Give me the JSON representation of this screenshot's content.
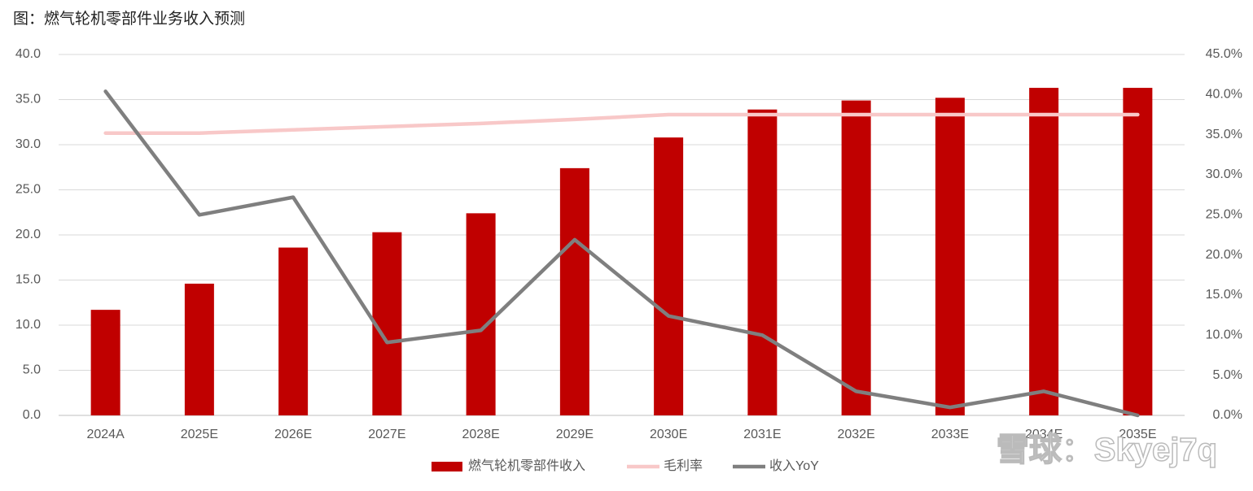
{
  "chart_data": {
    "type": "bar",
    "title": "图：燃气轮机零部件业务收入预测",
    "watermark": "雪球：Skyej7q",
    "categories": [
      "2024A",
      "2025E",
      "2026E",
      "2027E",
      "2028E",
      "2029E",
      "2030E",
      "2031E",
      "2032E",
      "2033E",
      "2034E",
      "2035E"
    ],
    "series": [
      {
        "name": "燃气轮机零部件收入",
        "type": "bar",
        "color": "#c00000",
        "values": [
          11.7,
          14.6,
          18.6,
          20.3,
          22.4,
          27.4,
          30.8,
          33.9,
          34.9,
          35.2,
          36.3,
          36.3
        ]
      },
      {
        "name": "毛利率",
        "type": "line",
        "axis": "y2",
        "color": "#f8c8c8",
        "values": [
          35.2,
          35.2,
          35.6,
          36.0,
          36.4,
          36.9,
          37.5,
          37.5,
          37.5,
          37.5,
          37.5,
          37.5
        ]
      },
      {
        "name": "收入YoY",
        "type": "line",
        "axis": "y2",
        "color": "#7f7f7f",
        "values": [
          40.4,
          25.0,
          27.2,
          9.1,
          10.6,
          21.9,
          12.4,
          10.0,
          3.0,
          1.0,
          3.0,
          0.0
        ]
      }
    ],
    "ylim": [
      0,
      40
    ],
    "yticks": [
      {
        "value": 0,
        "label": "0.0"
      },
      {
        "value": 5,
        "label": "5.0"
      },
      {
        "value": 10,
        "label": "10.0"
      },
      {
        "value": 15,
        "label": "15.0"
      },
      {
        "value": 20,
        "label": "20.0"
      },
      {
        "value": 25,
        "label": "25.0"
      },
      {
        "value": 30,
        "label": "30.0"
      },
      {
        "value": 35,
        "label": "35.0"
      },
      {
        "value": 40,
        "label": "40.0"
      }
    ],
    "y2lim": [
      0,
      45
    ],
    "y2ticks": [
      {
        "value": 0,
        "label": "0.0%"
      },
      {
        "value": 5,
        "label": "5.0%"
      },
      {
        "value": 10,
        "label": "10.0%"
      },
      {
        "value": 15,
        "label": "15.0%"
      },
      {
        "value": 20,
        "label": "20.0%"
      },
      {
        "value": 25,
        "label": "25.0%"
      },
      {
        "value": 30,
        "label": "30.0%"
      },
      {
        "value": 35,
        "label": "35.0%"
      },
      {
        "value": 40,
        "label": "40.0%"
      },
      {
        "value": 45,
        "label": "45.0%"
      }
    ],
    "grid": true,
    "legend": "bottom"
  }
}
